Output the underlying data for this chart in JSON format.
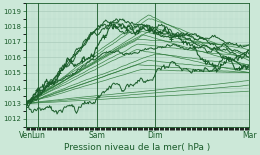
{
  "xlabel": "Pression niveau de la mer( hPa )",
  "ylim": [
    1011.5,
    1019.5
  ],
  "yticks": [
    1012,
    1013,
    1014,
    1015,
    1016,
    1017,
    1018,
    1019
  ],
  "bg_color": "#cce8d8",
  "grid_major_color": "#aaccbb",
  "grid_minor_color": "#bbddcc",
  "line_color_dark": "#1a5c2a",
  "line_color_mid": "#2d7a3a",
  "xtick_labels": [
    "Ven",
    "Lun",
    "Sam",
    "Dim",
    "Mar"
  ],
  "xtick_positions": [
    0.0,
    0.055,
    0.32,
    0.58,
    1.0
  ],
  "num_points": 300
}
